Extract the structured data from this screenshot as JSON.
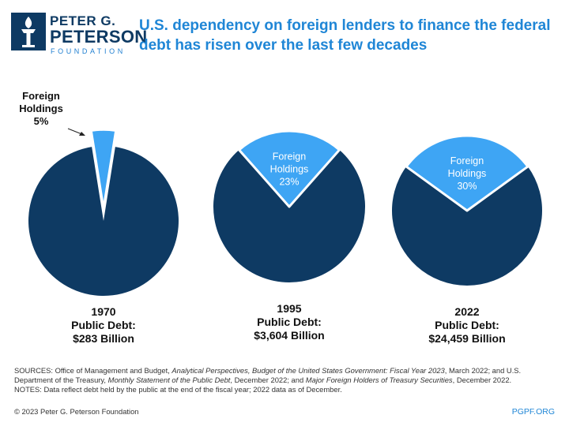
{
  "brand": {
    "line1": "PETER G.",
    "line2": "PETERSON",
    "line3": "FOUNDATION",
    "logo_icon": "torch-icon",
    "color": "#0e3a63"
  },
  "title": "U.S. dependency on foreign lenders to finance the federal debt has risen over the last few decades",
  "colors": {
    "title": "#1f86d6",
    "domestic": "#0e3a63",
    "foreign": "#3ea5f4",
    "foreign_text": "#ffffff",
    "label_text": "#111111"
  },
  "chart_data": {
    "type": "pie",
    "slice_label": "Foreign Holdings",
    "charts": [
      {
        "year": "1970",
        "debt_label": "Public Debt:",
        "debt_value": "$283 Billion",
        "foreign_pct": 5,
        "foreign_pct_label": "5%",
        "slice_exploded": true,
        "label_outside": true
      },
      {
        "year": "1995",
        "debt_label": "Public Debt:",
        "debt_value": "$3,604 Billion",
        "foreign_pct": 23,
        "foreign_pct_label": "23%",
        "slice_exploded": false,
        "label_outside": false
      },
      {
        "year": "2022",
        "debt_label": "Public Debt:",
        "debt_value": "$24,459 Billion",
        "foreign_pct": 30,
        "foreign_pct_label": "30%",
        "slice_exploded": false,
        "label_outside": false
      }
    ]
  },
  "footer": {
    "sources_prefix": "SOURCES: Office of Management and Budget, ",
    "sources_italic1": "Analytical Perspectives, Budget of the United States Government: Fiscal Year 2023",
    "sources_mid1": ", March 2022; and U.S. Department of the Treasury, ",
    "sources_italic2": "Monthly Statement of the Public Debt",
    "sources_mid2": ", December 2022; and ",
    "sources_italic3": "Major Foreign Holders of Treasury Securities",
    "sources_suffix": ", December 2022.",
    "notes": "NOTES: Data reflect debt held by the public at the end of the fiscal year; 2022 data as of December.",
    "copyright": "© 2023 Peter G. Peterson Foundation",
    "site": "PGPF.ORG"
  }
}
